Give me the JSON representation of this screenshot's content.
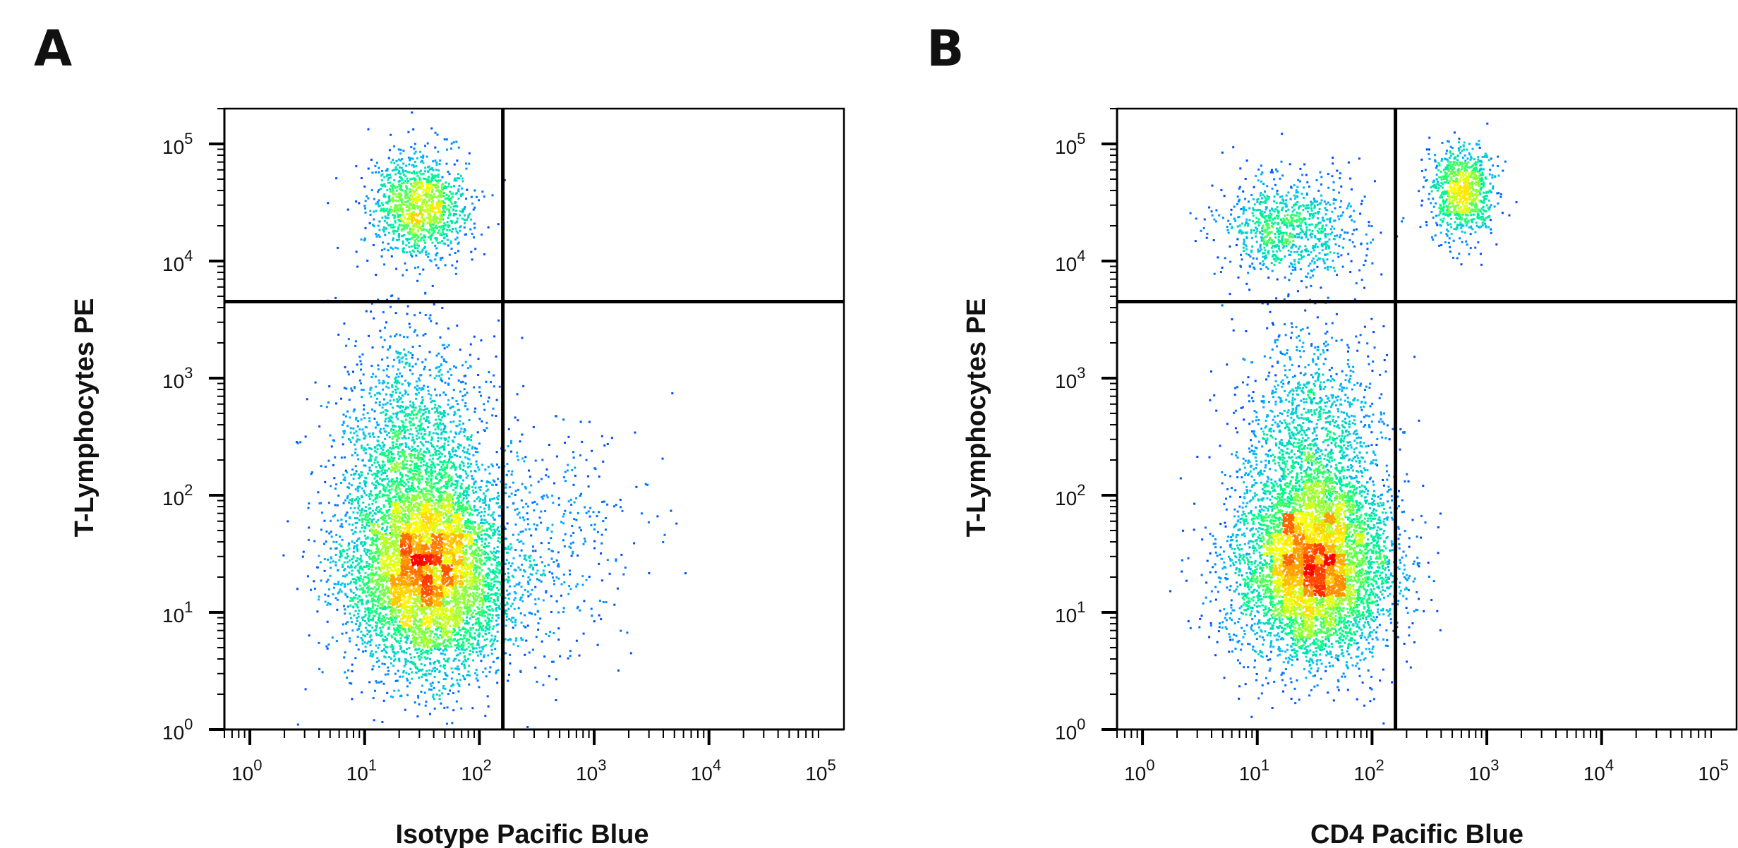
{
  "panels": [
    {
      "letter": "A",
      "xlabel": "Isotype Pacific Blue",
      "ylabel": "T-Lymphocytes PE"
    },
    {
      "letter": "B",
      "xlabel": "CD4 Pacific Blue",
      "ylabel": "T-Lymphocytes PE"
    }
  ],
  "chart_data": [
    {
      "type": "scatter",
      "subtype": "flow-cytometry-density-plot",
      "title": "",
      "xlabel": "Isotype Pacific Blue",
      "ylabel": "T-Lymphocytes PE",
      "xscale": "log",
      "yscale": "log",
      "xlim": [
        0.6,
        150000
      ],
      "ylim": [
        1,
        200000
      ],
      "x_tick_labels": [
        "10^0",
        "10^1",
        "10^2",
        "10^3",
        "10^4",
        "10^5"
      ],
      "y_tick_labels": [
        "10^0",
        "10^1",
        "10^2",
        "10^3",
        "10^4",
        "10^5"
      ],
      "quadrant_gate": {
        "x": 160,
        "y": 4500
      },
      "colormap": [
        "#0000ff",
        "#00b4ff",
        "#00ff80",
        "#ffff00",
        "#ff0000"
      ],
      "populations": [
        {
          "name": "",
          "center": [
            35,
            22
          ],
          "spread": [
            0.36,
            0.42
          ],
          "weight": 0.62
        },
        {
          "name": "",
          "center": [
            25,
            200
          ],
          "spread": [
            0.32,
            0.55
          ],
          "weight": 0.2
        },
        {
          "name": "",
          "center": [
            30,
            30000
          ],
          "spread": [
            0.22,
            0.22
          ],
          "weight": 0.14
        },
        {
          "name": "",
          "center": [
            400,
            40
          ],
          "spread": [
            0.4,
            0.5
          ],
          "weight": 0.04
        }
      ]
    },
    {
      "type": "scatter",
      "subtype": "flow-cytometry-density-plot",
      "title": "",
      "xlabel": "CD4 Pacific Blue",
      "ylabel": "T-Lymphocytes PE",
      "xscale": "log",
      "yscale": "log",
      "xlim": [
        0.6,
        150000
      ],
      "ylim": [
        1,
        200000
      ],
      "x_tick_labels": [
        "10^0",
        "10^1",
        "10^2",
        "10^3",
        "10^4",
        "10^5"
      ],
      "y_tick_labels": [
        "10^0",
        "10^1",
        "10^2",
        "10^3",
        "10^4",
        "10^5"
      ],
      "quadrant_gate": {
        "x": 160,
        "y": 4500
      },
      "colormap": [
        "#0000ff",
        "#00b4ff",
        "#00ff80",
        "#ffff00",
        "#ff0000"
      ],
      "populations": [
        {
          "name": "",
          "center": [
            30,
            25
          ],
          "spread": [
            0.34,
            0.4
          ],
          "weight": 0.63
        },
        {
          "name": "",
          "center": [
            30,
            250
          ],
          "spread": [
            0.3,
            0.55
          ],
          "weight": 0.17
        },
        {
          "name": "",
          "center": [
            18,
            20000
          ],
          "spread": [
            0.3,
            0.22
          ],
          "weight": 0.1
        },
        {
          "name": "",
          "center": [
            600,
            40000
          ],
          "spread": [
            0.14,
            0.2
          ],
          "weight": 0.1
        }
      ]
    }
  ]
}
